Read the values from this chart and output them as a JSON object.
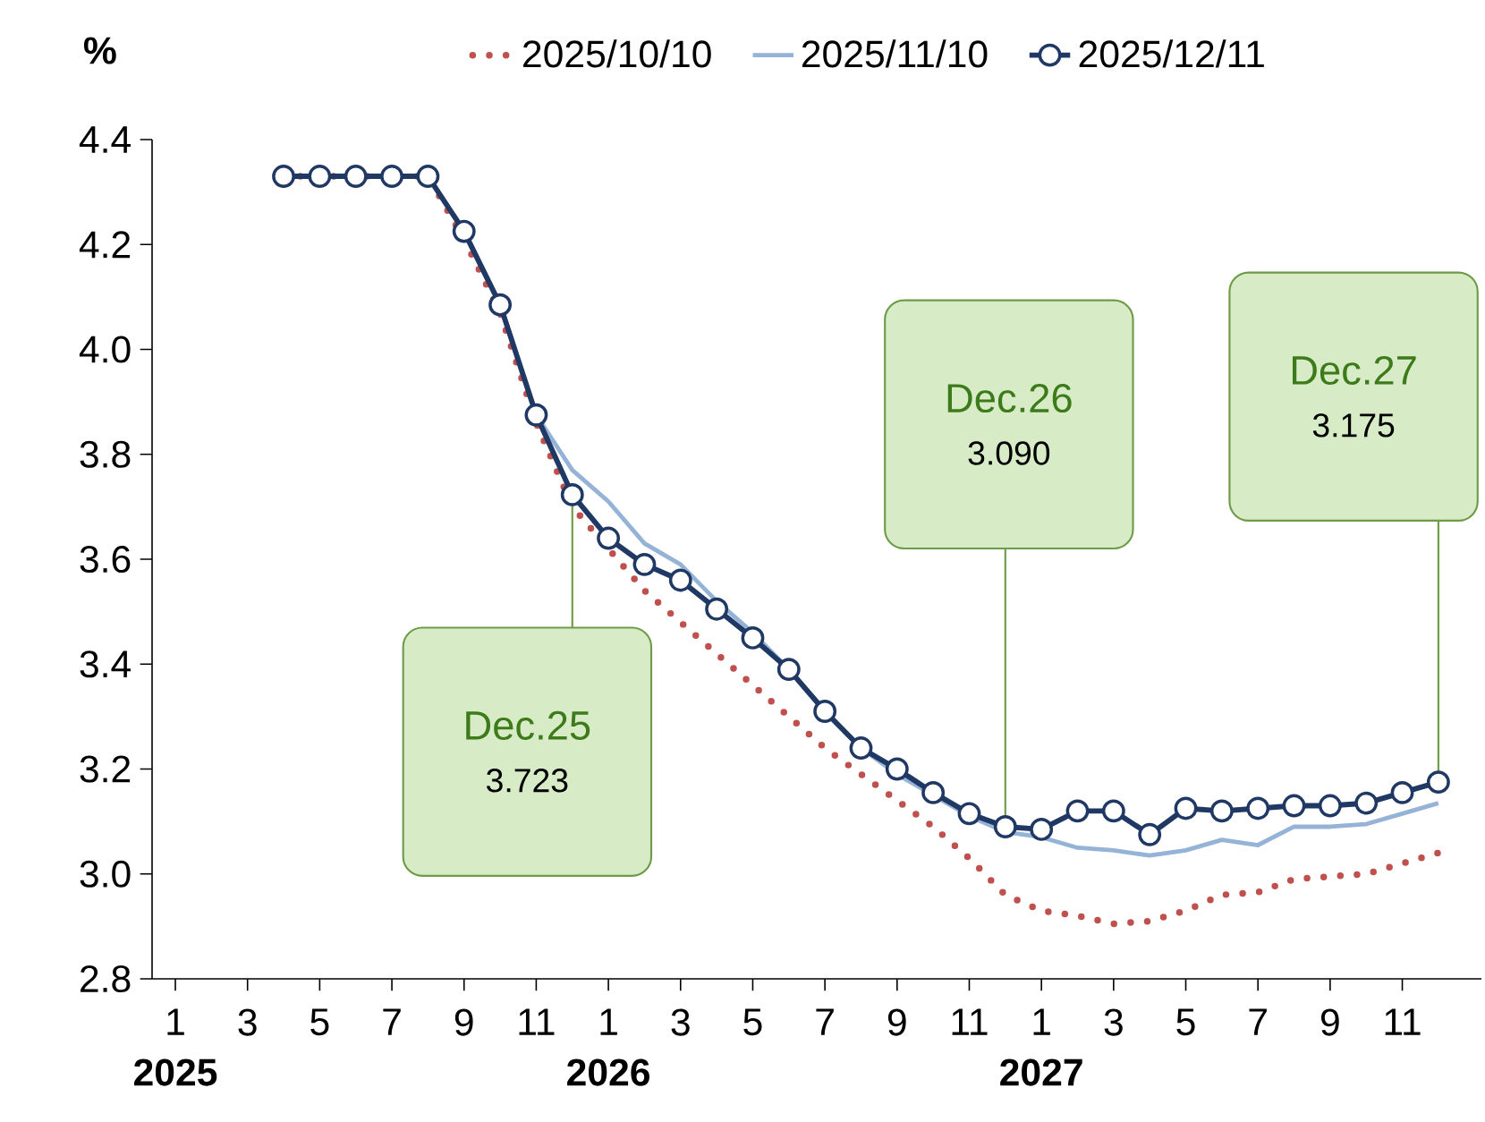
{
  "chart_data": {
    "type": "line",
    "ylabel": "%",
    "x": [
      "2025-04",
      "2025-05",
      "2025-06",
      "2025-07",
      "2025-08",
      "2025-09",
      "2025-10",
      "2025-11",
      "2025-12",
      "2026-01",
      "2026-02",
      "2026-03",
      "2026-04",
      "2026-05",
      "2026-06",
      "2026-07",
      "2026-08",
      "2026-09",
      "2026-10",
      "2026-11",
      "2026-12",
      "2027-01",
      "2027-02",
      "2027-03",
      "2027-04",
      "2027-05",
      "2027-06",
      "2027-07",
      "2027-08",
      "2027-09",
      "2027-10",
      "2027-11",
      "2027-12"
    ],
    "series": [
      {
        "name": "2025/10/10",
        "color": "#c0504d",
        "marker": "none",
        "line_style": "dotted",
        "values": [
          4.33,
          4.33,
          4.33,
          4.33,
          4.33,
          4.21,
          4.07,
          3.86,
          3.7,
          3.62,
          3.54,
          3.48,
          3.42,
          3.36,
          3.3,
          3.24,
          3.19,
          3.14,
          3.09,
          3.03,
          2.96,
          2.93,
          2.92,
          2.905,
          2.91,
          2.93,
          2.96,
          2.965,
          2.99,
          2.995,
          3.0,
          3.02,
          3.04
        ]
      },
      {
        "name": "2025/11/10",
        "color": "#95b3d7",
        "marker": "none",
        "line_style": "solid",
        "values": [
          4.33,
          4.33,
          4.33,
          4.33,
          4.33,
          4.225,
          4.085,
          3.875,
          3.77,
          3.71,
          3.63,
          3.59,
          3.52,
          3.46,
          3.39,
          3.31,
          3.24,
          3.19,
          3.15,
          3.11,
          3.08,
          3.07,
          3.05,
          3.045,
          3.035,
          3.045,
          3.065,
          3.055,
          3.09,
          3.09,
          3.095,
          3.115,
          3.135
        ]
      },
      {
        "name": "2025/12/11",
        "color": "#1f3864",
        "marker": "circle",
        "line_style": "solid",
        "values": [
          4.33,
          4.33,
          4.33,
          4.33,
          4.33,
          4.225,
          4.085,
          3.875,
          3.723,
          3.64,
          3.59,
          3.56,
          3.505,
          3.45,
          3.39,
          3.31,
          3.24,
          3.2,
          3.155,
          3.115,
          3.09,
          3.085,
          3.12,
          3.12,
          3.075,
          3.125,
          3.12,
          3.125,
          3.13,
          3.13,
          3.135,
          3.155,
          3.175
        ]
      }
    ],
    "xlim": [
      "2024-12-12",
      "2028-01-07"
    ],
    "xticks": [
      {
        "value": "2025-01",
        "label": "1"
      },
      {
        "value": "2025-03",
        "label": "3"
      },
      {
        "value": "2025-05",
        "label": "5"
      },
      {
        "value": "2025-07",
        "label": "7"
      },
      {
        "value": "2025-09",
        "label": "9"
      },
      {
        "value": "2025-11",
        "label": "11"
      },
      {
        "value": "2026-01",
        "label": "1"
      },
      {
        "value": "2026-03",
        "label": "3"
      },
      {
        "value": "2026-05",
        "label": "5"
      },
      {
        "value": "2026-07",
        "label": "7"
      },
      {
        "value": "2026-09",
        "label": "9"
      },
      {
        "value": "2026-11",
        "label": "11"
      },
      {
        "value": "2027-01",
        "label": "1"
      },
      {
        "value": "2027-03",
        "label": "3"
      },
      {
        "value": "2027-05",
        "label": "5"
      },
      {
        "value": "2027-07",
        "label": "7"
      },
      {
        "value": "2027-09",
        "label": "9"
      },
      {
        "value": "2027-11",
        "label": "11"
      }
    ],
    "ylim": [
      2.8,
      4.4
    ],
    "yticks": [
      2.8,
      {
        "value": 3.0,
        "label": "3.0"
      },
      3.2,
      3.4,
      3.6,
      3.8,
      {
        "value": 4.0,
        "label": "4.0"
      },
      4.2,
      4.4
    ],
    "annotations": [
      "2025",
      "2026",
      "2027",
      {
        "text": "Dec.25",
        "x": "2025-12",
        "y": 3.723
      },
      "3.723",
      {
        "text": "Dec.26",
        "x": "2026-12",
        "y": 3.09
      },
      "3.090",
      {
        "text": "Dec.27",
        "x": "2027-12",
        "y": 3.175
      },
      "3.175"
    ],
    "grid": false,
    "legend": "top"
  }
}
